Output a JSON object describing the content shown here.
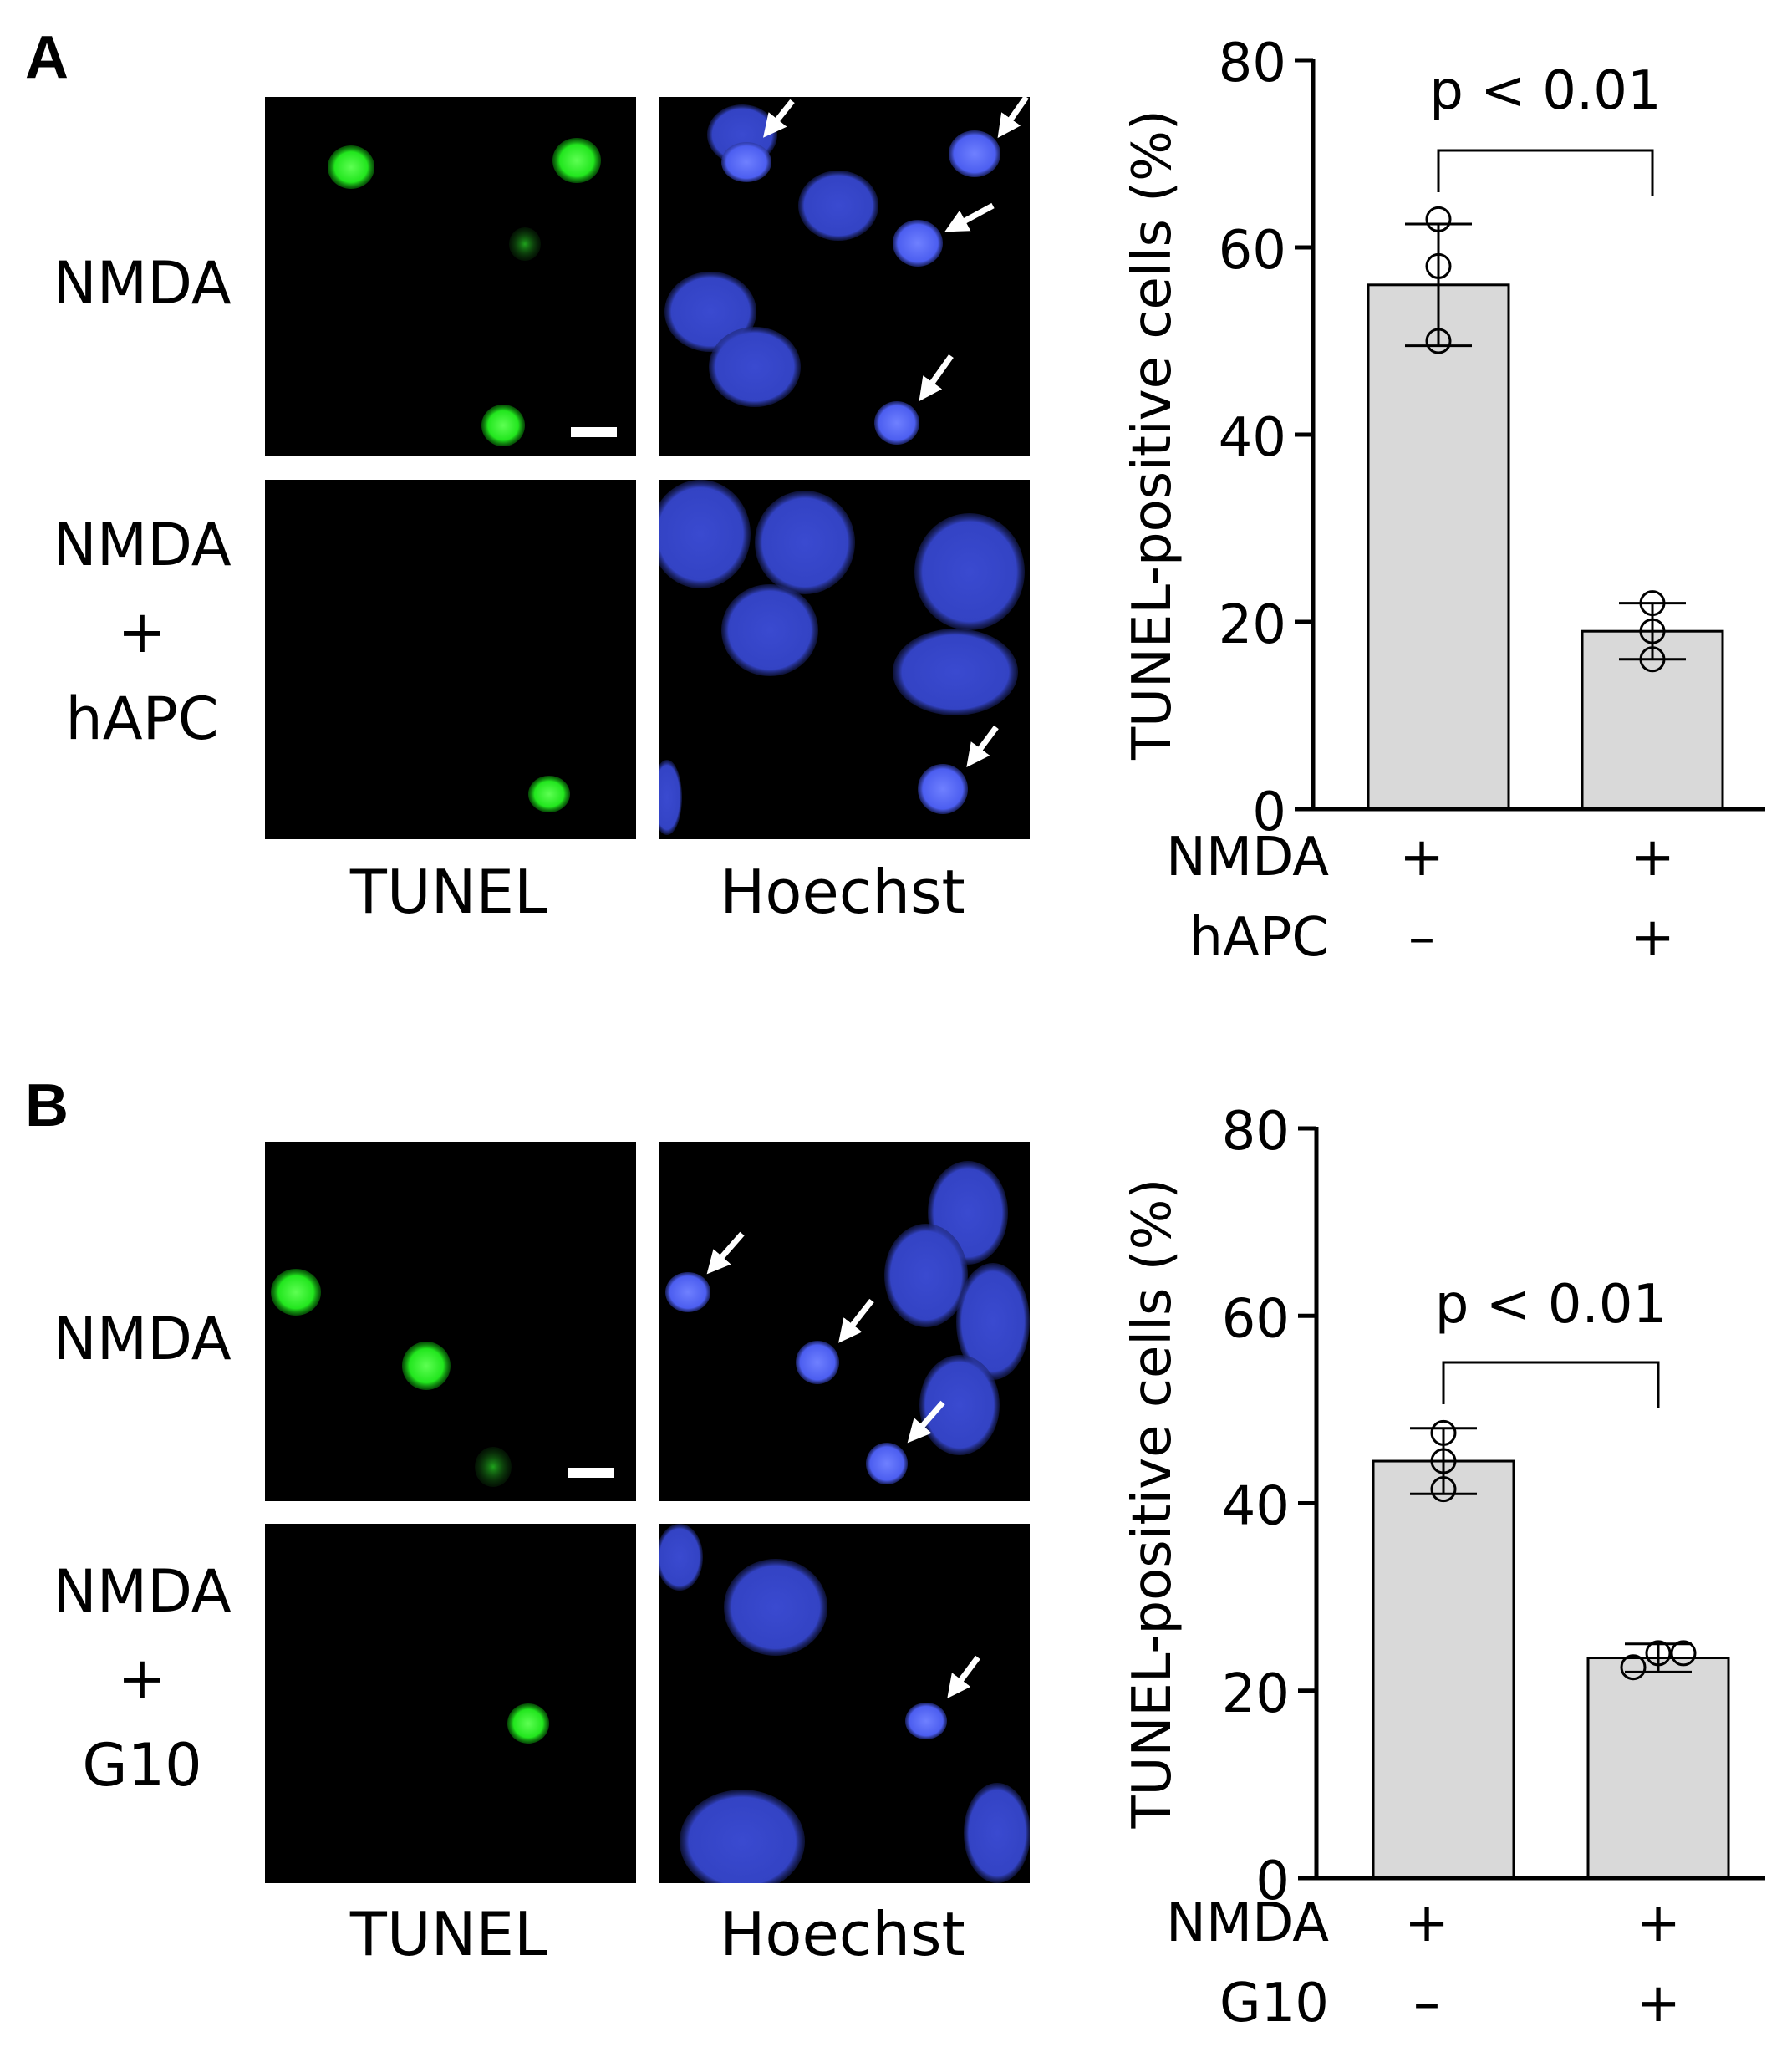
{
  "colors": {
    "tunel": "#22e61e",
    "hoechst": "#4c5ef0",
    "nucleus_speck": "#8fa0ff",
    "bar_fill": "#d9d9d9",
    "arrow": "#ffffff",
    "background": "#000000"
  },
  "panels": [
    {
      "letter": "A",
      "rows": [
        {
          "condition": [
            "NMDA"
          ]
        },
        {
          "condition": [
            "NMDA",
            "+",
            "hAPC"
          ]
        }
      ],
      "image_labels": [
        "TUNEL",
        "Hoechst"
      ],
      "treatments": [
        {
          "label": "NMDA",
          "marks": [
            "+",
            "+"
          ]
        },
        {
          "label": "hAPC",
          "marks": [
            "–",
            "+"
          ]
        }
      ]
    },
    {
      "letter": "B",
      "rows": [
        {
          "condition": [
            "NMDA"
          ]
        },
        {
          "condition": [
            "NMDA",
            "+",
            "G10"
          ]
        }
      ],
      "image_labels": [
        "TUNEL",
        "Hoechst"
      ],
      "treatments": [
        {
          "label": "NMDA",
          "marks": [
            "+",
            "+"
          ]
        },
        {
          "label": "G10",
          "marks": [
            "–",
            "+"
          ]
        }
      ]
    }
  ],
  "chart_data": [
    {
      "type": "bar",
      "ylabel": "TUNEL-positive cells (%)",
      "ylim": [
        0,
        80
      ],
      "yticks": [
        0,
        20,
        40,
        60,
        80
      ],
      "grid": false,
      "bars": [
        {
          "mean": 56,
          "sd": 6.5,
          "points": [
            63,
            58,
            50
          ]
        },
        {
          "mean": 19,
          "sd": 3,
          "points": [
            22,
            19,
            16
          ]
        }
      ],
      "annotation": "p < 0.01"
    },
    {
      "type": "bar",
      "ylabel": "TUNEL-positive cells (%)",
      "ylim": [
        0,
        80
      ],
      "yticks": [
        0,
        20,
        40,
        60,
        80
      ],
      "grid": false,
      "bars": [
        {
          "mean": 44.5,
          "sd": 3.5,
          "points": [
            47.5,
            44.5,
            41.5
          ]
        },
        {
          "mean": 23.5,
          "sd": 1.5,
          "points": [
            22.5,
            24,
            24
          ]
        }
      ],
      "annotation": "p < 0.01"
    }
  ]
}
